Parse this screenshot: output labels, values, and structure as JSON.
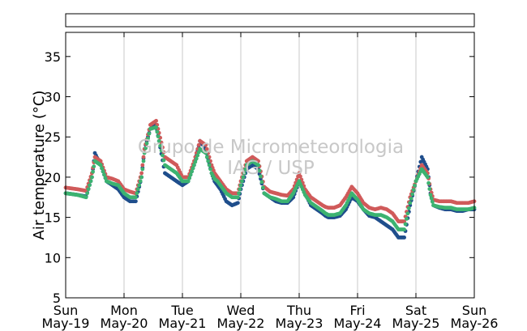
{
  "chart_data": {
    "type": "scatter",
    "title": "",
    "ylabel": "Air temperature (°C)",
    "xlabel": "",
    "ylim": [
      5,
      38
    ],
    "xlim": [
      0,
      7
    ],
    "yticks": [
      5,
      10,
      15,
      20,
      25,
      30,
      35
    ],
    "x_ticks": [
      {
        "x": 0,
        "day": "Sun",
        "date": "May-19"
      },
      {
        "x": 1,
        "day": "Mon",
        "date": "May-20"
      },
      {
        "x": 2,
        "day": "Tue",
        "date": "May-21"
      },
      {
        "x": 3,
        "day": "Wed",
        "date": "May-22"
      },
      {
        "x": 4,
        "day": "Thu",
        "date": "May-23"
      },
      {
        "x": 5,
        "day": "Fri",
        "date": "May-24"
      },
      {
        "x": 6,
        "day": "Sat",
        "date": "May-25"
      },
      {
        "x": 7,
        "day": "Sun",
        "date": "May-26"
      }
    ],
    "grid": "vertical",
    "legend_box": "empty box above plot",
    "watermark": [
      "Grupo de Micrometeorologia",
      "IAG / USP"
    ],
    "series": [
      {
        "color": "#1f4e8c",
        "x": [
          0.0,
          0.2,
          0.35,
          0.45,
          0.5,
          0.6,
          0.7,
          0.8,
          0.9,
          1.0,
          1.1,
          1.2,
          1.3,
          1.35,
          1.45,
          1.55,
          1.6,
          1.7,
          1.8,
          1.9,
          2.0,
          2.1,
          2.2,
          2.3,
          2.4,
          2.5,
          2.55,
          2.6,
          2.65,
          2.75,
          2.85,
          2.95,
          3.0,
          3.1,
          3.2,
          3.3,
          3.4,
          3.5,
          3.6,
          3.7,
          3.8,
          3.9,
          4.0,
          4.1,
          4.2,
          4.3,
          4.4,
          4.45,
          4.5,
          4.6,
          4.7,
          4.8,
          4.9,
          5.0,
          5.1,
          5.2,
          5.3,
          5.4,
          5.5,
          5.6,
          5.7,
          5.8,
          5.9,
          6.0,
          6.1,
          6.2,
          6.25,
          6.3,
          6.4,
          6.5,
          6.6,
          6.7,
          6.8,
          6.9,
          7.0
        ],
        "y": [
          18.0,
          17.8,
          17.6,
          20.0,
          23.0,
          21.5,
          19.5,
          19.0,
          18.5,
          17.5,
          17.0,
          17.0,
          20.0,
          23.5,
          26.0,
          26.5,
          24.5,
          20.5,
          20.0,
          19.5,
          19.0,
          19.5,
          21.5,
          24.5,
          23.5,
          20.5,
          19.5,
          19.0,
          18.5,
          17.0,
          16.5,
          16.8,
          18.5,
          21.0,
          21.5,
          21.0,
          18.0,
          17.5,
          17.0,
          16.8,
          16.8,
          17.5,
          19.5,
          18.0,
          16.5,
          16.0,
          15.5,
          15.2,
          15.0,
          15.0,
          15.2,
          16.0,
          17.5,
          17.0,
          16.0,
          15.2,
          15.0,
          14.5,
          14.0,
          13.5,
          12.5,
          12.5,
          16.5,
          19.5,
          22.5,
          21.0,
          18.0,
          16.5,
          16.2,
          16.0,
          16.0,
          15.8,
          15.8,
          16.0,
          16.0
        ]
      },
      {
        "color": "#d05a5a",
        "x": [
          0.0,
          0.2,
          0.35,
          0.45,
          0.5,
          0.6,
          0.7,
          0.8,
          0.9,
          1.0,
          1.1,
          1.2,
          1.3,
          1.35,
          1.45,
          1.55,
          1.6,
          1.7,
          1.8,
          1.9,
          2.0,
          2.1,
          2.2,
          2.3,
          2.4,
          2.5,
          2.55,
          2.6,
          2.65,
          2.75,
          2.85,
          2.95,
          3.0,
          3.1,
          3.2,
          3.3,
          3.4,
          3.5,
          3.6,
          3.7,
          3.8,
          3.9,
          4.0,
          4.1,
          4.2,
          4.3,
          4.4,
          4.45,
          4.5,
          4.6,
          4.7,
          4.8,
          4.9,
          5.0,
          5.1,
          5.2,
          5.3,
          5.4,
          5.5,
          5.6,
          5.7,
          5.8,
          5.9,
          6.0,
          6.1,
          6.2,
          6.25,
          6.3,
          6.4,
          6.5,
          6.6,
          6.7,
          6.8,
          6.9,
          7.0
        ],
        "y": [
          18.7,
          18.5,
          18.3,
          20.5,
          22.5,
          22.0,
          20.0,
          19.8,
          19.5,
          18.5,
          18.2,
          18.0,
          20.5,
          23.5,
          26.5,
          27.0,
          25.5,
          22.5,
          22.0,
          21.5,
          20.0,
          20.0,
          22.0,
          24.5,
          24.0,
          21.5,
          20.5,
          20.0,
          19.5,
          18.5,
          18.0,
          18.0,
          19.5,
          22.0,
          22.5,
          22.0,
          18.8,
          18.2,
          18.0,
          17.8,
          17.7,
          18.5,
          20.5,
          18.5,
          17.5,
          17.0,
          16.5,
          16.3,
          16.2,
          16.2,
          16.5,
          17.5,
          18.8,
          18.0,
          16.8,
          16.2,
          16.0,
          16.2,
          16.0,
          15.5,
          14.5,
          14.5,
          17.5,
          19.5,
          21.5,
          20.5,
          18.5,
          17.2,
          17.0,
          17.0,
          17.0,
          16.8,
          16.8,
          16.8,
          17.0
        ]
      },
      {
        "color": "#3cb371",
        "x": [
          0.0,
          0.2,
          0.35,
          0.45,
          0.5,
          0.6,
          0.7,
          0.8,
          0.9,
          1.0,
          1.1,
          1.2,
          1.3,
          1.35,
          1.45,
          1.55,
          1.6,
          1.7,
          1.8,
          1.9,
          2.0,
          2.1,
          2.2,
          2.3,
          2.4,
          2.5,
          2.55,
          2.6,
          2.65,
          2.75,
          2.85,
          2.95,
          3.0,
          3.1,
          3.2,
          3.3,
          3.4,
          3.5,
          3.6,
          3.7,
          3.8,
          3.9,
          4.0,
          4.1,
          4.2,
          4.3,
          4.4,
          4.45,
          4.5,
          4.6,
          4.7,
          4.8,
          4.9,
          5.0,
          5.1,
          5.2,
          5.3,
          5.4,
          5.5,
          5.6,
          5.7,
          5.8,
          5.9,
          6.0,
          6.1,
          6.2,
          6.25,
          6.3,
          6.4,
          6.5,
          6.6,
          6.7,
          6.8,
          6.9,
          7.0
        ],
        "y": [
          18.0,
          17.8,
          17.5,
          20.0,
          22.0,
          21.5,
          19.5,
          19.2,
          19.0,
          18.0,
          17.5,
          17.5,
          20.0,
          23.0,
          26.0,
          26.2,
          24.5,
          21.5,
          21.0,
          20.5,
          19.5,
          19.5,
          21.5,
          23.5,
          23.0,
          20.5,
          19.8,
          19.5,
          19.0,
          18.0,
          17.5,
          17.5,
          19.0,
          21.5,
          22.0,
          21.5,
          18.0,
          17.5,
          17.3,
          17.0,
          17.0,
          18.0,
          19.5,
          17.8,
          16.8,
          16.3,
          15.8,
          15.5,
          15.3,
          15.3,
          15.5,
          16.5,
          18.0,
          17.2,
          16.0,
          15.5,
          15.3,
          15.3,
          15.0,
          14.5,
          13.5,
          13.5,
          16.8,
          19.5,
          21.0,
          20.0,
          17.8,
          16.5,
          16.3,
          16.2,
          16.2,
          16.0,
          16.0,
          16.0,
          16.2
        ]
      }
    ]
  }
}
